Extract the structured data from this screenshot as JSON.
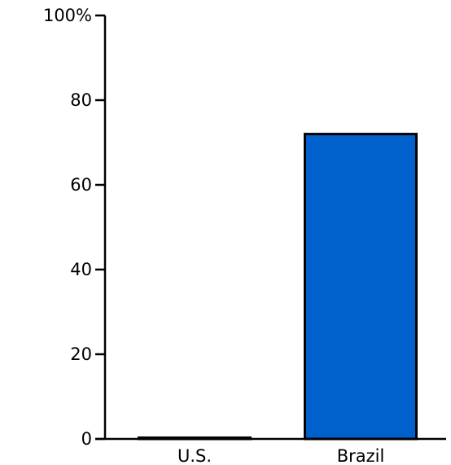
{
  "chart_data": {
    "type": "bar",
    "title": "",
    "xlabel": "",
    "ylabel": "",
    "categories": [
      "U.S.",
      "Brazil"
    ],
    "values": [
      0.3,
      72
    ],
    "ylim": [
      0,
      100
    ],
    "yticks": [
      0,
      20,
      40,
      60,
      80,
      100
    ],
    "ytick_labels": [
      "0",
      "20",
      "40",
      "60",
      "80",
      "100%"
    ],
    "grid": false,
    "legend": "none",
    "colors": {
      "bar": "#0061cc",
      "outline": "#000000",
      "axis": "#000000"
    }
  }
}
